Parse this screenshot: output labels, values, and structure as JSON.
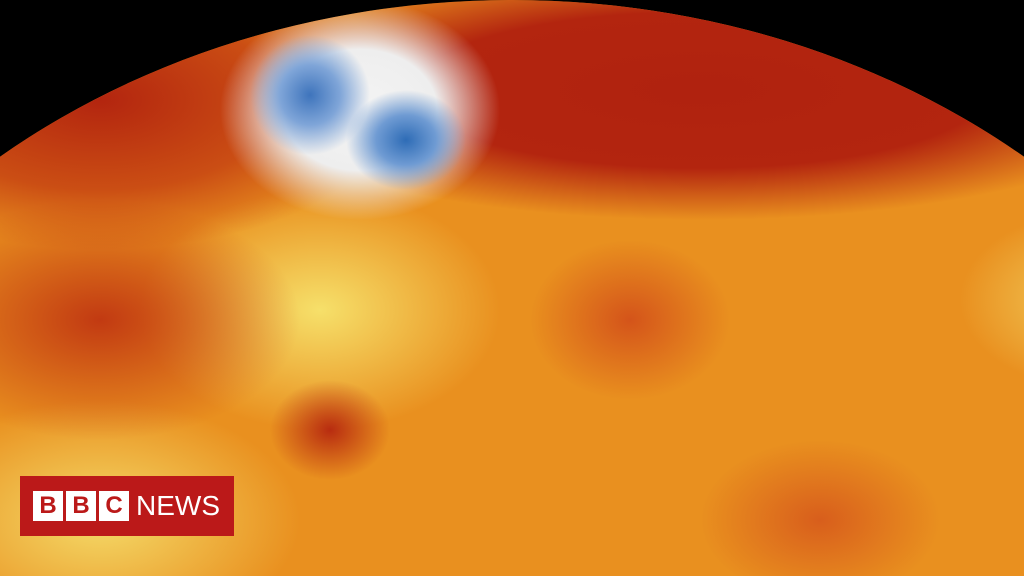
{
  "image": {
    "subject": "world-temperature-anomaly-map",
    "colors": {
      "hot": "#b3250f",
      "warm": "#e9901f",
      "mild": "#f6e06a",
      "cold": "#3e74bc"
    }
  },
  "logo": {
    "letters": [
      "B",
      "B",
      "C"
    ],
    "word": "NEWS",
    "color": "#bb1919"
  }
}
